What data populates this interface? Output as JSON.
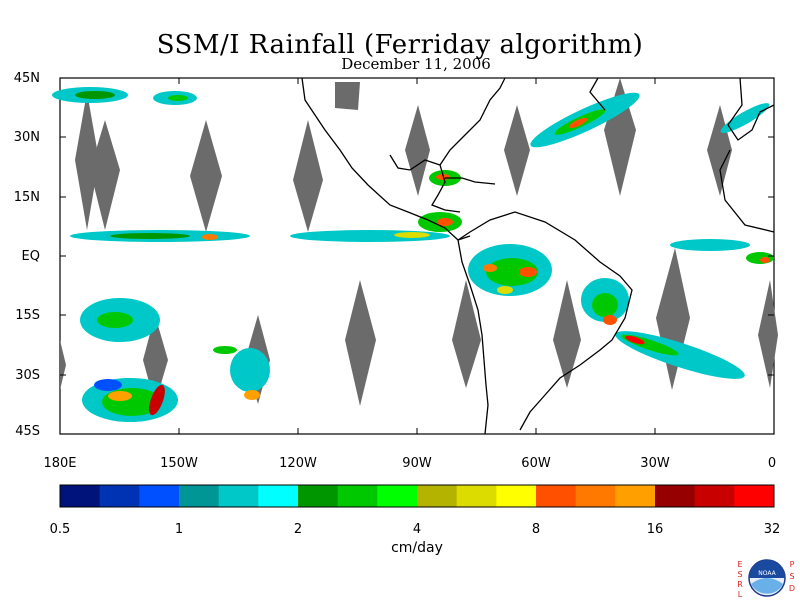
{
  "title": "SSM/I Rainfall (Ferriday algorithm)",
  "subtitle": "December 11, 2006",
  "latitude_labels": [
    "45N",
    "30N",
    "15N",
    "EQ",
    "15S",
    "30S",
    "45S"
  ],
  "longitude_labels": [
    "180E",
    "150W",
    "120W",
    "90W",
    "60W",
    "30W",
    "0"
  ],
  "colorbar": {
    "tick_labels": [
      "0.5",
      "1",
      "2",
      "4",
      "8",
      "16",
      "32"
    ],
    "units": "cm/day",
    "colors": [
      "#00137a",
      "#0032b4",
      "#0050ff",
      "#009696",
      "#00c8c8",
      "#00ffff",
      "#009600",
      "#00c800",
      "#00ff00",
      "#b4b400",
      "#dcdc00",
      "#ffff00",
      "#ff5000",
      "#ff7800",
      "#ffa000",
      "#960000",
      "#c80000",
      "#ff0000"
    ]
  },
  "logo": {
    "agency": "NOAA",
    "left_letters": "ESRL",
    "right_letters": "PSD"
  }
}
